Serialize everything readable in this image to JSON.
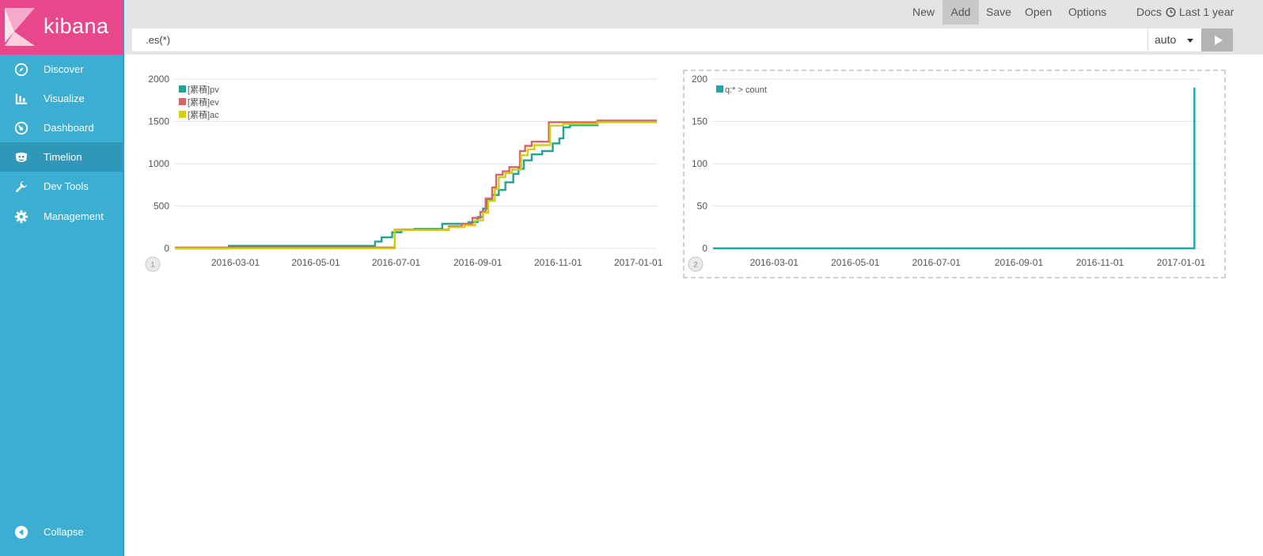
{
  "app": {
    "brand": "kibana"
  },
  "sidebar": {
    "items": [
      {
        "label": "Discover",
        "icon": "compass-icon",
        "active": false
      },
      {
        "label": "Visualize",
        "icon": "bar-chart-icon",
        "active": false
      },
      {
        "label": "Dashboard",
        "icon": "dashboard-icon",
        "active": false
      },
      {
        "label": "Timelion",
        "icon": "timelion-icon",
        "active": true
      },
      {
        "label": "Dev Tools",
        "icon": "wrench-icon",
        "active": false
      },
      {
        "label": "Management",
        "icon": "gear-icon",
        "active": false
      }
    ],
    "collapse": {
      "label": "Collapse",
      "icon": "collapse-arrow-icon"
    }
  },
  "topnav": {
    "items": [
      "New",
      "Add",
      "Save",
      "Open",
      "Options",
      "Docs"
    ],
    "active": "Add",
    "time_label": "Last 1 year",
    "time_icon": "clock-icon"
  },
  "expression": {
    "value": ".es(*)",
    "interval": "auto",
    "run_icon": "play-icon"
  },
  "colors": {
    "teal": "#1ea593",
    "salmon": "#d36669",
    "yellow": "#d0d10a",
    "count": "#1ba6a8",
    "sidebar": "#3caed2",
    "logo": "#e8488b"
  },
  "chart_data": [
    {
      "type": "line",
      "cell_number": "1",
      "x_type": "date",
      "x_ticks": [
        "2016-03-01",
        "2016-05-01",
        "2016-07-01",
        "2016-09-01",
        "2016-11-01",
        "2017-01-01"
      ],
      "xlim": [
        "2016-01-15",
        "2017-01-15"
      ],
      "ylim": [
        0,
        2000
      ],
      "y_ticks": [
        0,
        500,
        1000,
        1500,
        2000
      ],
      "legend_position": "top-left",
      "grid": true,
      "series": [
        {
          "name": "[累積]pv",
          "color": "#1ea593",
          "points": [
            [
              "2016-01-15",
              0
            ],
            [
              "2016-02-25",
              0
            ],
            [
              "2016-02-25",
              30
            ],
            [
              "2016-06-15",
              30
            ],
            [
              "2016-06-15",
              80
            ],
            [
              "2016-06-20",
              80
            ],
            [
              "2016-06-20",
              130
            ],
            [
              "2016-06-28",
              130
            ],
            [
              "2016-06-28",
              190
            ],
            [
              "2016-07-05",
              190
            ],
            [
              "2016-07-05",
              220
            ],
            [
              "2016-07-15",
              220
            ],
            [
              "2016-07-15",
              230
            ],
            [
              "2016-08-05",
              230
            ],
            [
              "2016-08-05",
              290
            ],
            [
              "2016-08-25",
              290
            ],
            [
              "2016-08-25",
              310
            ],
            [
              "2016-09-01",
              310
            ],
            [
              "2016-09-01",
              370
            ],
            [
              "2016-09-05",
              370
            ],
            [
              "2016-09-05",
              470
            ],
            [
              "2016-09-08",
              470
            ],
            [
              "2016-09-08",
              580
            ],
            [
              "2016-09-12",
              580
            ],
            [
              "2016-09-12",
              630
            ],
            [
              "2016-09-17",
              630
            ],
            [
              "2016-09-17",
              690
            ],
            [
              "2016-09-22",
              690
            ],
            [
              "2016-09-22",
              780
            ],
            [
              "2016-09-28",
              780
            ],
            [
              "2016-09-28",
              880
            ],
            [
              "2016-10-02",
              880
            ],
            [
              "2016-10-02",
              940
            ],
            [
              "2016-10-06",
              940
            ],
            [
              "2016-10-06",
              1040
            ],
            [
              "2016-10-12",
              1040
            ],
            [
              "2016-10-12",
              1110
            ],
            [
              "2016-10-20",
              1110
            ],
            [
              "2016-10-20",
              1150
            ],
            [
              "2016-10-28",
              1150
            ],
            [
              "2016-10-28",
              1240
            ],
            [
              "2016-11-02",
              1240
            ],
            [
              "2016-11-02",
              1300
            ],
            [
              "2016-11-05",
              1300
            ],
            [
              "2016-11-05",
              1430
            ],
            [
              "2016-11-10",
              1430
            ],
            [
              "2016-11-10",
              1455
            ],
            [
              "2016-12-01",
              1455
            ],
            [
              "2016-12-01",
              1500
            ],
            [
              "2017-01-15",
              1500
            ]
          ]
        },
        {
          "name": "[累積]ev",
          "color": "#d36669",
          "points": [
            [
              "2016-01-15",
              10
            ],
            [
              "2016-06-30",
              10
            ],
            [
              "2016-06-30",
              220
            ],
            [
              "2016-08-10",
              220
            ],
            [
              "2016-08-10",
              260
            ],
            [
              "2016-08-20",
              260
            ],
            [
              "2016-08-20",
              290
            ],
            [
              "2016-08-28",
              290
            ],
            [
              "2016-08-28",
              360
            ],
            [
              "2016-09-03",
              360
            ],
            [
              "2016-09-03",
              430
            ],
            [
              "2016-09-07",
              430
            ],
            [
              "2016-09-07",
              590
            ],
            [
              "2016-09-12",
              590
            ],
            [
              "2016-09-12",
              720
            ],
            [
              "2016-09-15",
              720
            ],
            [
              "2016-09-15",
              870
            ],
            [
              "2016-09-20",
              870
            ],
            [
              "2016-09-20",
              910
            ],
            [
              "2016-09-25",
              910
            ],
            [
              "2016-09-25",
              960
            ],
            [
              "2016-10-03",
              960
            ],
            [
              "2016-10-03",
              1150
            ],
            [
              "2016-10-07",
              1150
            ],
            [
              "2016-10-07",
              1210
            ],
            [
              "2016-10-12",
              1210
            ],
            [
              "2016-10-12",
              1260
            ],
            [
              "2016-10-25",
              1260
            ],
            [
              "2016-10-25",
              1490
            ],
            [
              "2016-12-01",
              1490
            ],
            [
              "2016-12-01",
              1510
            ],
            [
              "2017-01-15",
              1510
            ]
          ]
        },
        {
          "name": "[累積]ac",
          "color": "#d0d10a",
          "points": [
            [
              "2016-01-15",
              0
            ],
            [
              "2016-06-30",
              0
            ],
            [
              "2016-06-30",
              215
            ],
            [
              "2016-08-10",
              215
            ],
            [
              "2016-08-10",
              250
            ],
            [
              "2016-08-22",
              250
            ],
            [
              "2016-08-22",
              270
            ],
            [
              "2016-08-30",
              270
            ],
            [
              "2016-08-30",
              330
            ],
            [
              "2016-09-05",
              330
            ],
            [
              "2016-09-05",
              420
            ],
            [
              "2016-09-09",
              420
            ],
            [
              "2016-09-09",
              560
            ],
            [
              "2016-09-14",
              560
            ],
            [
              "2016-09-14",
              700
            ],
            [
              "2016-09-17",
              700
            ],
            [
              "2016-09-17",
              840
            ],
            [
              "2016-09-22",
              840
            ],
            [
              "2016-09-22",
              890
            ],
            [
              "2016-09-27",
              890
            ],
            [
              "2016-09-27",
              930
            ],
            [
              "2016-10-04",
              930
            ],
            [
              "2016-10-04",
              1100
            ],
            [
              "2016-10-09",
              1100
            ],
            [
              "2016-10-09",
              1170
            ],
            [
              "2016-10-14",
              1170
            ],
            [
              "2016-10-14",
              1220
            ],
            [
              "2016-10-26",
              1220
            ],
            [
              "2016-10-26",
              1450
            ],
            [
              "2016-11-05",
              1450
            ],
            [
              "2016-11-05",
              1470
            ],
            [
              "2016-12-01",
              1470
            ],
            [
              "2016-12-01",
              1490
            ],
            [
              "2017-01-15",
              1490
            ]
          ]
        }
      ]
    },
    {
      "type": "line",
      "cell_number": "2",
      "x_type": "date",
      "x_ticks": [
        "2016-03-01",
        "2016-05-01",
        "2016-07-01",
        "2016-09-01",
        "2016-11-01",
        "2017-01-01"
      ],
      "xlim": [
        "2016-01-15",
        "2017-01-15"
      ],
      "ylim": [
        0,
        200
      ],
      "y_ticks": [
        0,
        50,
        100,
        150,
        200
      ],
      "legend_position": "top-left",
      "grid": true,
      "series": [
        {
          "name": "q:* > count",
          "color": "#1ba6a8",
          "points": [
            [
              "2016-01-15",
              0
            ],
            [
              "2017-01-11",
              0
            ],
            [
              "2017-01-11",
              190
            ]
          ]
        }
      ]
    }
  ]
}
